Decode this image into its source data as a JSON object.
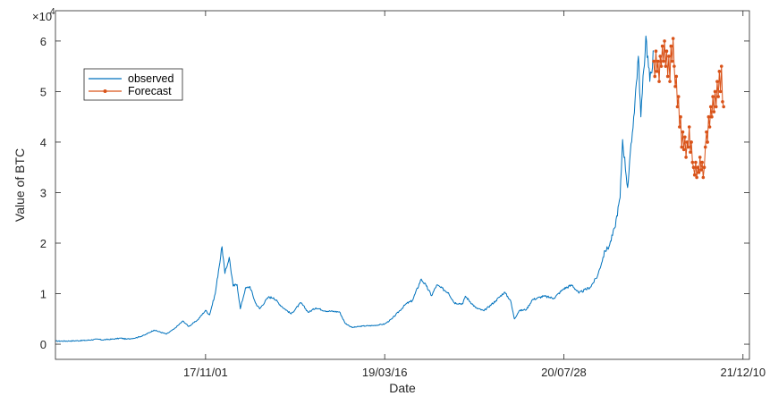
{
  "chart_data": {
    "type": "line",
    "xlabel": "Date",
    "ylabel": "Value of BTC",
    "y_multiplier_label": "×10",
    "y_multiplier_exponent": "4",
    "y_scale": 10000,
    "ylim": [
      -0.3,
      6.6
    ],
    "xlim": [
      "2016-09-08",
      "2021-12-28"
    ],
    "y_ticks": [
      0,
      1,
      2,
      3,
      4,
      5,
      6
    ],
    "x_ticks": [
      {
        "date": "2017-11-01",
        "label": "17/11/01"
      },
      {
        "date": "2019-03-16",
        "label": "19/03/16"
      },
      {
        "date": "2020-07-28",
        "label": "20/07/28"
      },
      {
        "date": "2021-12-10",
        "label": "21/12/10"
      }
    ],
    "grid": false,
    "legend_location": "top-left",
    "series": [
      {
        "name": "observed",
        "color": "#0072BD",
        "marker": "none",
        "points": [
          [
            "2016-09-08",
            0.06
          ],
          [
            "2016-10-20",
            0.064
          ],
          [
            "2016-12-01",
            0.075
          ],
          [
            "2017-01-05",
            0.1
          ],
          [
            "2017-01-15",
            0.085
          ],
          [
            "2017-02-15",
            0.1
          ],
          [
            "2017-03-10",
            0.12
          ],
          [
            "2017-03-25",
            0.1
          ],
          [
            "2017-04-20",
            0.125
          ],
          [
            "2017-05-15",
            0.18
          ],
          [
            "2017-06-10",
            0.28
          ],
          [
            "2017-07-15",
            0.2
          ],
          [
            "2017-08-05",
            0.3
          ],
          [
            "2017-08-30",
            0.46
          ],
          [
            "2017-09-15",
            0.35
          ],
          [
            "2017-10-10",
            0.48
          ],
          [
            "2017-11-01",
            0.67
          ],
          [
            "2017-11-12",
            0.58
          ],
          [
            "2017-11-28",
            1.0
          ],
          [
            "2017-12-07",
            1.45
          ],
          [
            "2017-12-17",
            1.93
          ],
          [
            "2017-12-25",
            1.4
          ],
          [
            "2018-01-06",
            1.72
          ],
          [
            "2018-01-17",
            1.15
          ],
          [
            "2018-01-28",
            1.18
          ],
          [
            "2018-02-06",
            0.7
          ],
          [
            "2018-02-20",
            1.1
          ],
          [
            "2018-03-05",
            1.14
          ],
          [
            "2018-03-20",
            0.82
          ],
          [
            "2018-04-01",
            0.7
          ],
          [
            "2018-04-25",
            0.93
          ],
          [
            "2018-05-10",
            0.92
          ],
          [
            "2018-06-01",
            0.75
          ],
          [
            "2018-06-28",
            0.6
          ],
          [
            "2018-07-25",
            0.82
          ],
          [
            "2018-08-15",
            0.63
          ],
          [
            "2018-09-05",
            0.72
          ],
          [
            "2018-10-01",
            0.66
          ],
          [
            "2018-11-10",
            0.64
          ],
          [
            "2018-11-25",
            0.42
          ],
          [
            "2018-12-15",
            0.33
          ],
          [
            "2019-01-15",
            0.36
          ],
          [
            "2019-02-15",
            0.37
          ],
          [
            "2019-03-16",
            0.4
          ],
          [
            "2019-04-05",
            0.5
          ],
          [
            "2019-05-15",
            0.8
          ],
          [
            "2019-06-01",
            0.86
          ],
          [
            "2019-06-26",
            1.29
          ],
          [
            "2019-07-10",
            1.15
          ],
          [
            "2019-07-25",
            0.96
          ],
          [
            "2019-08-08",
            1.17
          ],
          [
            "2019-09-10",
            1.02
          ],
          [
            "2019-09-26",
            0.82
          ],
          [
            "2019-10-20",
            0.8
          ],
          [
            "2019-10-27",
            0.95
          ],
          [
            "2019-11-25",
            0.72
          ],
          [
            "2019-12-18",
            0.66
          ],
          [
            "2020-01-20",
            0.86
          ],
          [
            "2020-02-13",
            1.03
          ],
          [
            "2020-03-01",
            0.87
          ],
          [
            "2020-03-12",
            0.5
          ],
          [
            "2020-03-25",
            0.66
          ],
          [
            "2020-04-15",
            0.69
          ],
          [
            "2020-05-01",
            0.88
          ],
          [
            "2020-06-01",
            0.95
          ],
          [
            "2020-06-30",
            0.91
          ],
          [
            "2020-07-28",
            1.1
          ],
          [
            "2020-08-20",
            1.17
          ],
          [
            "2020-09-08",
            1.01
          ],
          [
            "2020-10-10",
            1.13
          ],
          [
            "2020-10-30",
            1.35
          ],
          [
            "2020-11-20",
            1.85
          ],
          [
            "2020-12-01",
            1.93
          ],
          [
            "2020-12-17",
            2.3
          ],
          [
            "2021-01-01",
            2.9
          ],
          [
            "2021-01-08",
            4.05
          ],
          [
            "2021-01-22",
            3.1
          ],
          [
            "2021-02-08",
            4.5
          ],
          [
            "2021-02-21",
            5.7
          ],
          [
            "2021-02-28",
            4.5
          ],
          [
            "2021-03-14",
            6.1
          ],
          [
            "2021-03-25",
            5.2
          ],
          [
            "2021-04-05",
            5.8
          ]
        ]
      },
      {
        "name": "Forecast",
        "color": "#D95319",
        "marker": "dot",
        "points": [
          [
            "2021-04-05",
            5.6
          ],
          [
            "2021-04-08",
            5.3
          ],
          [
            "2021-04-11",
            5.8
          ],
          [
            "2021-04-14",
            5.4
          ],
          [
            "2021-04-17",
            5.6
          ],
          [
            "2021-04-20",
            5.2
          ],
          [
            "2021-04-23",
            5.7
          ],
          [
            "2021-04-26",
            5.5
          ],
          [
            "2021-04-29",
            5.9
          ],
          [
            "2021-05-02",
            5.6
          ],
          [
            "2021-05-05",
            6.0
          ],
          [
            "2021-05-08",
            5.5
          ],
          [
            "2021-05-11",
            5.8
          ],
          [
            "2021-05-14",
            5.3
          ],
          [
            "2021-05-17",
            5.7
          ],
          [
            "2021-05-20",
            5.2
          ],
          [
            "2021-05-23",
            5.9
          ],
          [
            "2021-05-26",
            5.6
          ],
          [
            "2021-05-29",
            6.05
          ],
          [
            "2021-06-01",
            5.5
          ],
          [
            "2021-06-04",
            5.1
          ],
          [
            "2021-06-07",
            5.3
          ],
          [
            "2021-06-10",
            4.7
          ],
          [
            "2021-06-13",
            4.9
          ],
          [
            "2021-06-16",
            4.3
          ],
          [
            "2021-06-19",
            4.5
          ],
          [
            "2021-06-22",
            3.9
          ],
          [
            "2021-06-25",
            4.2
          ],
          [
            "2021-06-28",
            3.85
          ],
          [
            "2021-07-01",
            4.1
          ],
          [
            "2021-07-04",
            3.7
          ],
          [
            "2021-07-07",
            4.0
          ],
          [
            "2021-07-10",
            3.9
          ],
          [
            "2021-07-13",
            4.3
          ],
          [
            "2021-07-16",
            3.8
          ],
          [
            "2021-07-19",
            4.0
          ],
          [
            "2021-07-22",
            3.6
          ],
          [
            "2021-07-25",
            3.5
          ],
          [
            "2021-07-28",
            3.35
          ],
          [
            "2021-07-31",
            3.6
          ],
          [
            "2021-08-03",
            3.3
          ],
          [
            "2021-08-06",
            3.5
          ],
          [
            "2021-08-09",
            3.4
          ],
          [
            "2021-08-12",
            3.7
          ],
          [
            "2021-08-15",
            3.45
          ],
          [
            "2021-08-18",
            3.6
          ],
          [
            "2021-08-21",
            3.3
          ],
          [
            "2021-08-24",
            3.5
          ],
          [
            "2021-08-27",
            3.9
          ],
          [
            "2021-08-30",
            4.2
          ],
          [
            "2021-09-02",
            4.0
          ],
          [
            "2021-09-05",
            4.5
          ],
          [
            "2021-09-08",
            4.3
          ],
          [
            "2021-09-11",
            4.7
          ],
          [
            "2021-09-14",
            4.5
          ],
          [
            "2021-09-17",
            4.9
          ],
          [
            "2021-09-20",
            4.6
          ],
          [
            "2021-09-23",
            5.0
          ],
          [
            "2021-09-26",
            4.7
          ],
          [
            "2021-09-29",
            5.2
          ],
          [
            "2021-10-02",
            4.9
          ],
          [
            "2021-10-05",
            5.4
          ],
          [
            "2021-10-08",
            5.0
          ],
          [
            "2021-10-11",
            5.5
          ],
          [
            "2021-10-14",
            4.8
          ],
          [
            "2021-10-17",
            4.7
          ]
        ]
      }
    ]
  }
}
